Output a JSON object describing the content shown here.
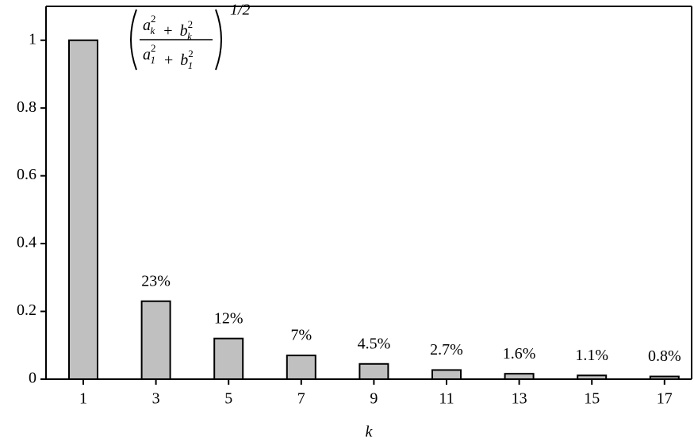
{
  "chart_data": {
    "type": "bar",
    "xlabel": "k",
    "categories": [
      "1",
      "3",
      "5",
      "7",
      "9",
      "11",
      "13",
      "15",
      "17"
    ],
    "values": [
      1,
      0.23,
      0.12,
      0.07,
      0.045,
      0.027,
      0.016,
      0.011,
      0.008
    ],
    "value_labels": [
      null,
      "23%",
      "12%",
      "7%",
      "4.5%",
      "2.7%",
      "1.6%",
      "1.1%",
      "0.8%"
    ],
    "color": "#c0c0c0",
    "ylim": [
      0,
      1.1
    ],
    "yticks": [
      0,
      0.2,
      0.4,
      0.6,
      0.8,
      1
    ],
    "grid": false,
    "annotation": {
      "numerator": [
        {
          "base": "a",
          "sup": "2",
          "sub": "k"
        },
        "+",
        {
          "base": "b",
          "sup": "2",
          "sub": "k"
        }
      ],
      "denominator": [
        {
          "base": "a",
          "sup": "2",
          "sub": "1"
        },
        "+",
        {
          "base": "b",
          "sup": "2",
          "sub": "1"
        }
      ],
      "exponent": "1/2"
    }
  }
}
